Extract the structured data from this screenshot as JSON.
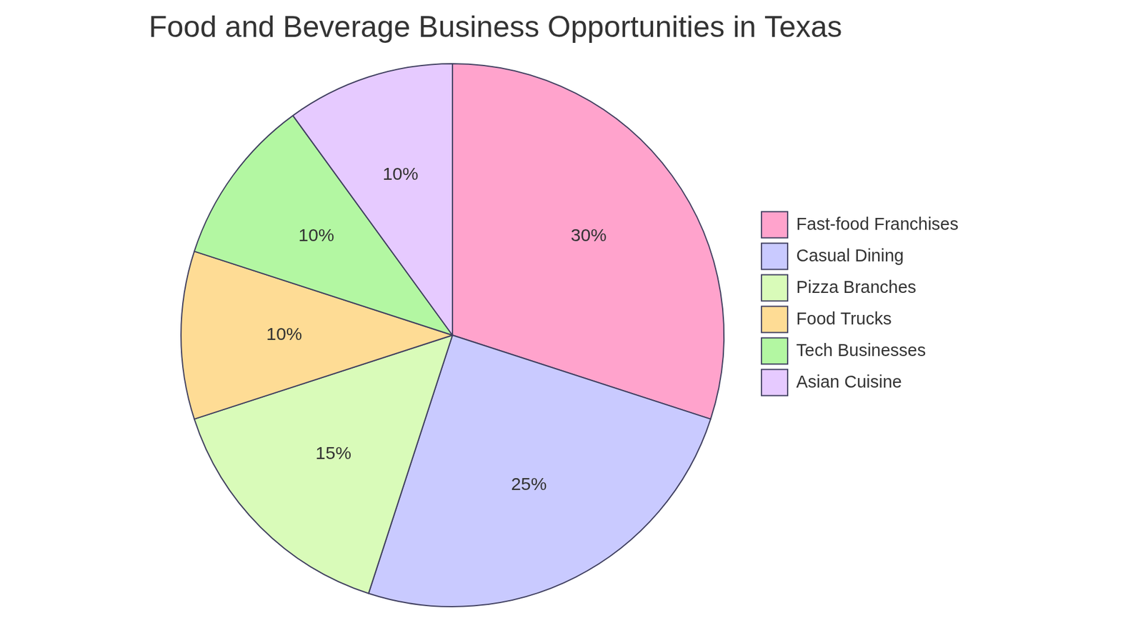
{
  "chart_data": {
    "type": "pie",
    "title": "Food and Beverage Business Opportunities in Texas",
    "categories": [
      "Fast-food Franchises",
      "Casual Dining",
      "Pizza Branches",
      "Food Trucks",
      "Tech Businesses",
      "Asian Cuisine"
    ],
    "values": [
      30,
      25,
      15,
      10,
      10,
      10
    ],
    "value_labels": [
      "30%",
      "25%",
      "15%",
      "10%",
      "10%",
      "10%"
    ],
    "colors": [
      "#ffa3cc",
      "#c9caff",
      "#d9fbb9",
      "#fedc95",
      "#b3f7a2",
      "#e6caff"
    ],
    "legend": "right",
    "data_labels": true
  }
}
